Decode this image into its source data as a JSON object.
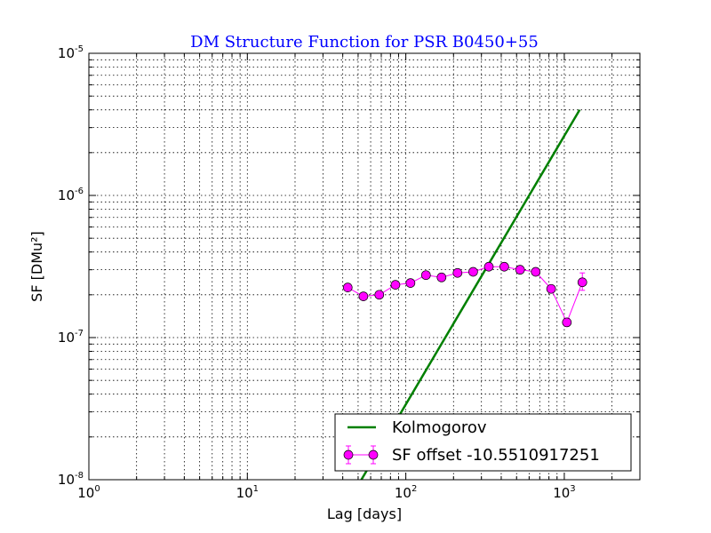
{
  "chart_data": {
    "type": "line",
    "title": "DM Structure Function for PSR B0450+55",
    "xlabel": "Lag [days]",
    "ylabel": "SF [DMu²]",
    "x_scale": "log",
    "y_scale": "log",
    "xlim": [
      1,
      3000
    ],
    "ylim": [
      1e-08,
      1e-05
    ],
    "grid": true,
    "legend_position": "lower-right",
    "x_ticks": [
      {
        "value": 1,
        "label": "10",
        "exp": "0"
      },
      {
        "value": 10,
        "label": "10",
        "exp": "1"
      },
      {
        "value": 100,
        "label": "10",
        "exp": "2"
      },
      {
        "value": 1000,
        "label": "10",
        "exp": "3"
      }
    ],
    "y_ticks": [
      {
        "value": 1e-08,
        "label": "10",
        "exp": "-8"
      },
      {
        "value": 1e-07,
        "label": "10",
        "exp": "-7"
      },
      {
        "value": 1e-06,
        "label": "10",
        "exp": "-6"
      },
      {
        "value": 1e-05,
        "label": "10",
        "exp": "-5"
      }
    ],
    "series": [
      {
        "name": "Kolmogorov",
        "kind": "line",
        "color": "#008000",
        "x": [
          40,
          1250
        ],
        "y": [
          6e-09,
          4e-06
        ]
      },
      {
        "name": "SF offset -10.5510917251",
        "kind": "line-markers-errorbars",
        "color": "#ff00ff",
        "x": [
          43,
          54,
          68,
          86,
          107,
          134,
          168,
          212,
          266,
          334,
          418,
          526,
          660,
          826,
          1038,
          1300
        ],
        "y": [
          2.25e-07,
          1.95e-07,
          2e-07,
          2.35e-07,
          2.42e-07,
          2.75e-07,
          2.65e-07,
          2.85e-07,
          2.9e-07,
          3.15e-07,
          3.15e-07,
          3e-07,
          2.9e-07,
          2.2e-07,
          1.28e-07,
          2.45e-07
        ],
        "yerr_lo": [
          0,
          0,
          0,
          0,
          0,
          0,
          0,
          0,
          0,
          0,
          0,
          0,
          0,
          0,
          8e-09,
          3e-08
        ],
        "yerr_hi": [
          0,
          0,
          0,
          0,
          0,
          0,
          0,
          0,
          0,
          0,
          0,
          0,
          0,
          0,
          8e-09,
          4e-08
        ]
      }
    ]
  }
}
